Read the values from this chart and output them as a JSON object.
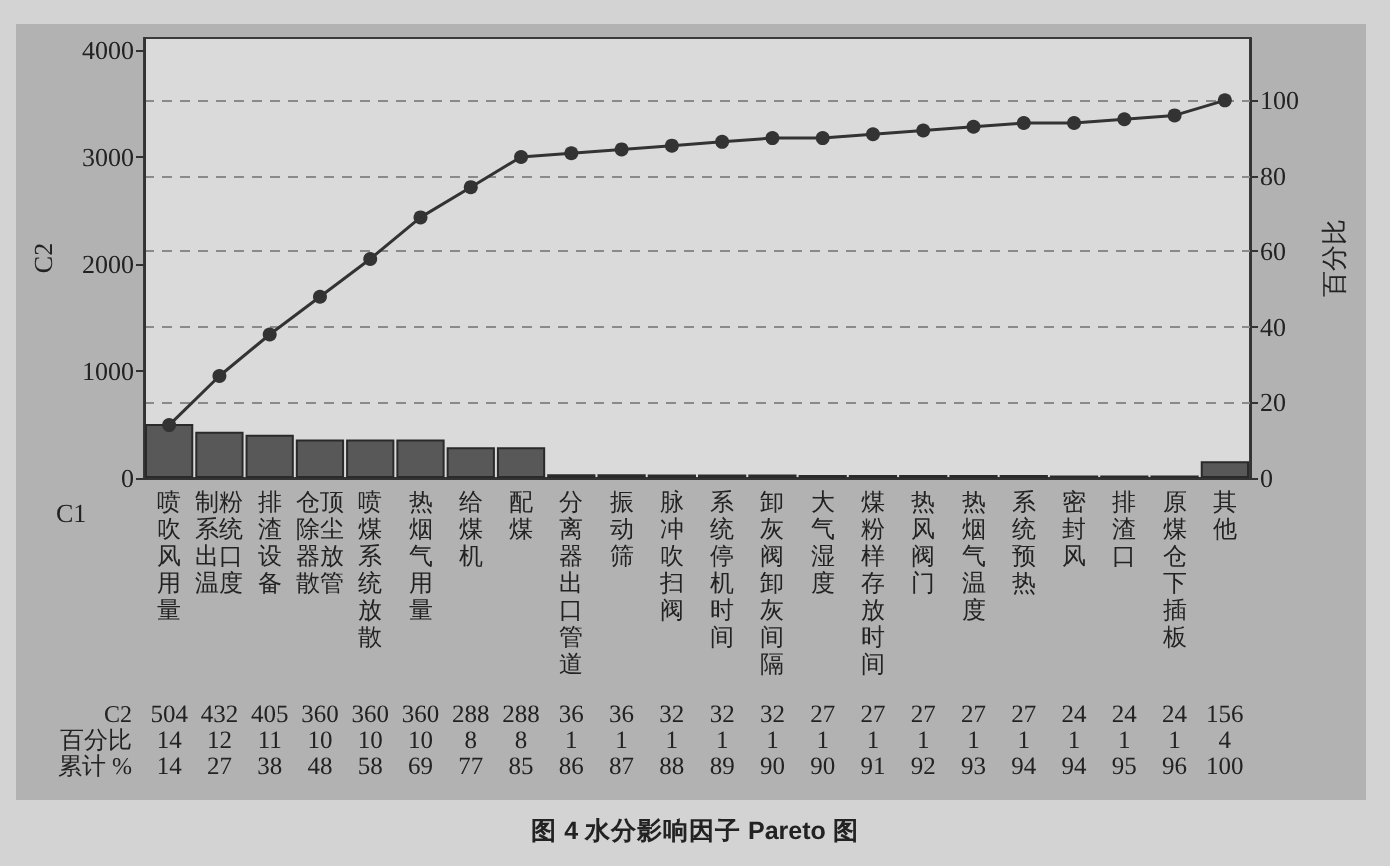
{
  "chart_data": {
    "type": "bar",
    "title": "图 4 水分影响因子 Pareto 图",
    "xlabel": "C1",
    "ylabel": "C2",
    "y2label": "百分比",
    "categories": [
      "喷吹风用量",
      "制粉系统出口温度",
      "排渣设备",
      "仓顶除尘器放散管",
      "喷煤系统放散",
      "热烟气用量",
      "给煤机",
      "配煤",
      "分离器出口管道",
      "振动筛",
      "脉冲吹扫阀",
      "系统停机时间",
      "卸灰阀卸灰间隔",
      "大气湿度",
      "煤粉样存放时间",
      "热风阀门",
      "热烟气温度",
      "系统预热",
      "密封风",
      "排渣口",
      "原煤仓下插板",
      "其他"
    ],
    "series": [
      {
        "color": "#585858",
        "values": [
          504,
          432,
          405,
          360,
          360,
          360,
          288,
          288,
          36,
          36,
          32,
          32,
          32,
          27,
          27,
          27,
          27,
          27,
          24,
          24,
          24,
          156
        ]
      },
      {
        "type": "line",
        "axis": "y2",
        "color": "#333333",
        "values": [
          14,
          27,
          38,
          48,
          58,
          69,
          77,
          85,
          86,
          87,
          88,
          89,
          90,
          90,
          91,
          92,
          93,
          94,
          94,
          95,
          96,
          100
        ]
      }
    ],
    "annotations": [
      "C2",
      "百分比",
      "14",
      "12",
      "11",
      "10",
      "10",
      "10",
      "8",
      "8",
      "1",
      "1",
      "1",
      "1",
      "1",
      "1",
      "1",
      "1",
      "1",
      "1",
      "1",
      "1",
      "1",
      "4",
      "累计 %"
    ],
    "ylim": [
      0,
      4110
    ],
    "yticks": [
      0,
      1000,
      2000,
      3000,
      4000
    ],
    "y2lim": [
      0,
      116.5
    ],
    "y2ticks": [
      0,
      20,
      40,
      60,
      80,
      100
    ],
    "grid": "y2",
    "marker": "circle",
    "line_style": "solid",
    "data_labels": true
  }
}
